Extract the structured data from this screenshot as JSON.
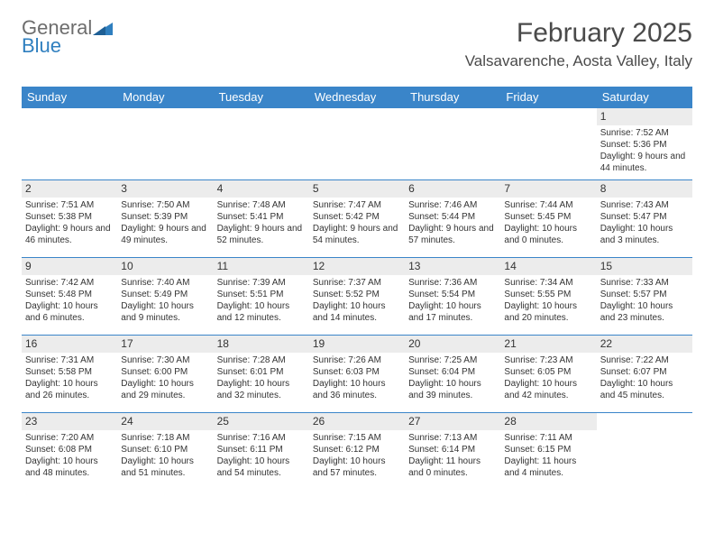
{
  "logo": {
    "line1": "General",
    "line2": "Blue"
  },
  "title": "February 2025",
  "location": "Valsavarenche, Aosta Valley, Italy",
  "colors": {
    "header_bg": "#3a85c9",
    "header_text": "#ffffff",
    "daybar_bg": "#ececec",
    "border": "#3a85c9",
    "body_text": "#333333",
    "logo_gray": "#6d6d6d",
    "logo_blue": "#2f7fbf"
  },
  "weekdays": [
    "Sunday",
    "Monday",
    "Tuesday",
    "Wednesday",
    "Thursday",
    "Friday",
    "Saturday"
  ],
  "weeks": [
    [
      null,
      null,
      null,
      null,
      null,
      null,
      {
        "d": "1",
        "sr": "Sunrise: 7:52 AM",
        "ss": "Sunset: 5:36 PM",
        "dl": "Daylight: 9 hours and 44 minutes."
      }
    ],
    [
      {
        "d": "2",
        "sr": "Sunrise: 7:51 AM",
        "ss": "Sunset: 5:38 PM",
        "dl": "Daylight: 9 hours and 46 minutes."
      },
      {
        "d": "3",
        "sr": "Sunrise: 7:50 AM",
        "ss": "Sunset: 5:39 PM",
        "dl": "Daylight: 9 hours and 49 minutes."
      },
      {
        "d": "4",
        "sr": "Sunrise: 7:48 AM",
        "ss": "Sunset: 5:41 PM",
        "dl": "Daylight: 9 hours and 52 minutes."
      },
      {
        "d": "5",
        "sr": "Sunrise: 7:47 AM",
        "ss": "Sunset: 5:42 PM",
        "dl": "Daylight: 9 hours and 54 minutes."
      },
      {
        "d": "6",
        "sr": "Sunrise: 7:46 AM",
        "ss": "Sunset: 5:44 PM",
        "dl": "Daylight: 9 hours and 57 minutes."
      },
      {
        "d": "7",
        "sr": "Sunrise: 7:44 AM",
        "ss": "Sunset: 5:45 PM",
        "dl": "Daylight: 10 hours and 0 minutes."
      },
      {
        "d": "8",
        "sr": "Sunrise: 7:43 AM",
        "ss": "Sunset: 5:47 PM",
        "dl": "Daylight: 10 hours and 3 minutes."
      }
    ],
    [
      {
        "d": "9",
        "sr": "Sunrise: 7:42 AM",
        "ss": "Sunset: 5:48 PM",
        "dl": "Daylight: 10 hours and 6 minutes."
      },
      {
        "d": "10",
        "sr": "Sunrise: 7:40 AM",
        "ss": "Sunset: 5:49 PM",
        "dl": "Daylight: 10 hours and 9 minutes."
      },
      {
        "d": "11",
        "sr": "Sunrise: 7:39 AM",
        "ss": "Sunset: 5:51 PM",
        "dl": "Daylight: 10 hours and 12 minutes."
      },
      {
        "d": "12",
        "sr": "Sunrise: 7:37 AM",
        "ss": "Sunset: 5:52 PM",
        "dl": "Daylight: 10 hours and 14 minutes."
      },
      {
        "d": "13",
        "sr": "Sunrise: 7:36 AM",
        "ss": "Sunset: 5:54 PM",
        "dl": "Daylight: 10 hours and 17 minutes."
      },
      {
        "d": "14",
        "sr": "Sunrise: 7:34 AM",
        "ss": "Sunset: 5:55 PM",
        "dl": "Daylight: 10 hours and 20 minutes."
      },
      {
        "d": "15",
        "sr": "Sunrise: 7:33 AM",
        "ss": "Sunset: 5:57 PM",
        "dl": "Daylight: 10 hours and 23 minutes."
      }
    ],
    [
      {
        "d": "16",
        "sr": "Sunrise: 7:31 AM",
        "ss": "Sunset: 5:58 PM",
        "dl": "Daylight: 10 hours and 26 minutes."
      },
      {
        "d": "17",
        "sr": "Sunrise: 7:30 AM",
        "ss": "Sunset: 6:00 PM",
        "dl": "Daylight: 10 hours and 29 minutes."
      },
      {
        "d": "18",
        "sr": "Sunrise: 7:28 AM",
        "ss": "Sunset: 6:01 PM",
        "dl": "Daylight: 10 hours and 32 minutes."
      },
      {
        "d": "19",
        "sr": "Sunrise: 7:26 AM",
        "ss": "Sunset: 6:03 PM",
        "dl": "Daylight: 10 hours and 36 minutes."
      },
      {
        "d": "20",
        "sr": "Sunrise: 7:25 AM",
        "ss": "Sunset: 6:04 PM",
        "dl": "Daylight: 10 hours and 39 minutes."
      },
      {
        "d": "21",
        "sr": "Sunrise: 7:23 AM",
        "ss": "Sunset: 6:05 PM",
        "dl": "Daylight: 10 hours and 42 minutes."
      },
      {
        "d": "22",
        "sr": "Sunrise: 7:22 AM",
        "ss": "Sunset: 6:07 PM",
        "dl": "Daylight: 10 hours and 45 minutes."
      }
    ],
    [
      {
        "d": "23",
        "sr": "Sunrise: 7:20 AM",
        "ss": "Sunset: 6:08 PM",
        "dl": "Daylight: 10 hours and 48 minutes."
      },
      {
        "d": "24",
        "sr": "Sunrise: 7:18 AM",
        "ss": "Sunset: 6:10 PM",
        "dl": "Daylight: 10 hours and 51 minutes."
      },
      {
        "d": "25",
        "sr": "Sunrise: 7:16 AM",
        "ss": "Sunset: 6:11 PM",
        "dl": "Daylight: 10 hours and 54 minutes."
      },
      {
        "d": "26",
        "sr": "Sunrise: 7:15 AM",
        "ss": "Sunset: 6:12 PM",
        "dl": "Daylight: 10 hours and 57 minutes."
      },
      {
        "d": "27",
        "sr": "Sunrise: 7:13 AM",
        "ss": "Sunset: 6:14 PM",
        "dl": "Daylight: 11 hours and 0 minutes."
      },
      {
        "d": "28",
        "sr": "Sunrise: 7:11 AM",
        "ss": "Sunset: 6:15 PM",
        "dl": "Daylight: 11 hours and 4 minutes."
      },
      null
    ]
  ]
}
